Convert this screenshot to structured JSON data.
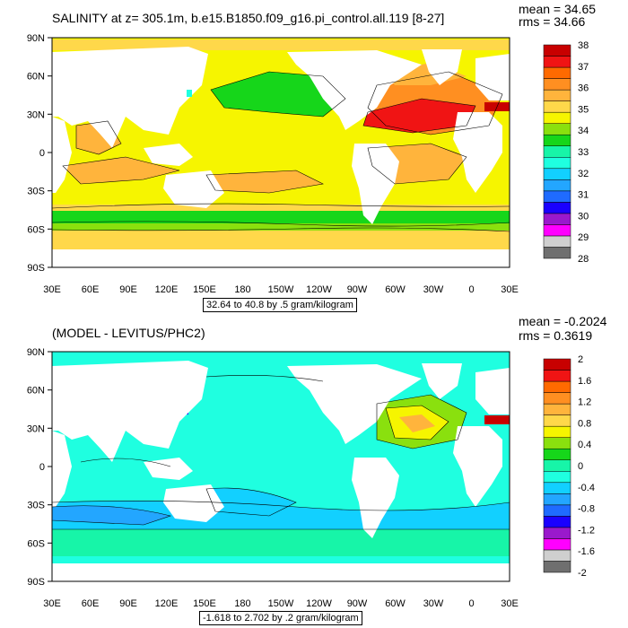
{
  "colors": {
    "land": "#ffffff",
    "outline": "#000000",
    "top_palette": [
      "#6f6f6f",
      "#cfcfcf",
      "#ff00ff",
      "#9a19cc",
      "#1a00ff",
      "#1f6bff",
      "#23a6ff",
      "#12d0ff",
      "#1fffe0",
      "#17f5a8",
      "#16d61a",
      "#8ae00e",
      "#f6f500",
      "#ffd84a",
      "#ffb43c",
      "#ff8f21",
      "#ff6a00",
      "#f01414",
      "#c80000"
    ],
    "bottom_palette": [
      "#6f6f6f",
      "#cfcfcf",
      "#ff00ff",
      "#9a19cc",
      "#1a00ff",
      "#1f6bff",
      "#23a6ff",
      "#12d0ff",
      "#1fffe0",
      "#17f5a8",
      "#16d61a",
      "#8ae00e",
      "#f6f500",
      "#ffd84a",
      "#ffb43c",
      "#ff8f21",
      "#ff6a00",
      "#f01414",
      "#c80000"
    ]
  },
  "top_panel": {
    "title": "SALINITY at z= 305.1m, b.e15.B1850.f09_g16.pi_control.all.119 [8-27]",
    "mean": "mean = 34.65",
    "rms": "rms = 34.66",
    "range_note": "32.64 to 40.8 by .5 gram/kilogram",
    "lat_labels": [
      "90N",
      "60N",
      "30N",
      "0",
      "30S",
      "60S",
      "90S"
    ],
    "lon_labels": [
      "30E",
      "60E",
      "90E",
      "120E",
      "150E",
      "180",
      "150W",
      "120W",
      "90W",
      "60W",
      "30W",
      "0",
      "30E"
    ],
    "colorbar_labels": [
      "28",
      "29",
      "30",
      "31",
      "32",
      "33",
      "34",
      "35",
      "36",
      "37",
      "38"
    ]
  },
  "bottom_panel": {
    "title": "(MODEL - LEVITUS/PHC2)",
    "mean": "mean = -0.2024",
    "rms": "rms = 0.3619",
    "range_note": "-1.618 to 2.702 by .2 gram/kilogram",
    "lat_labels": [
      "90N",
      "60N",
      "30N",
      "0",
      "30S",
      "60S",
      "90S"
    ],
    "lon_labels": [
      "30E",
      "60E",
      "90E",
      "120E",
      "150E",
      "180",
      "150W",
      "120W",
      "90W",
      "60W",
      "30W",
      "0",
      "30E"
    ],
    "colorbar_labels": [
      "-2",
      "-1.6",
      "-1.2",
      "-0.8",
      "-0.4",
      "0",
      "0.4",
      "0.8",
      "1.2",
      "1.6",
      "2"
    ]
  }
}
